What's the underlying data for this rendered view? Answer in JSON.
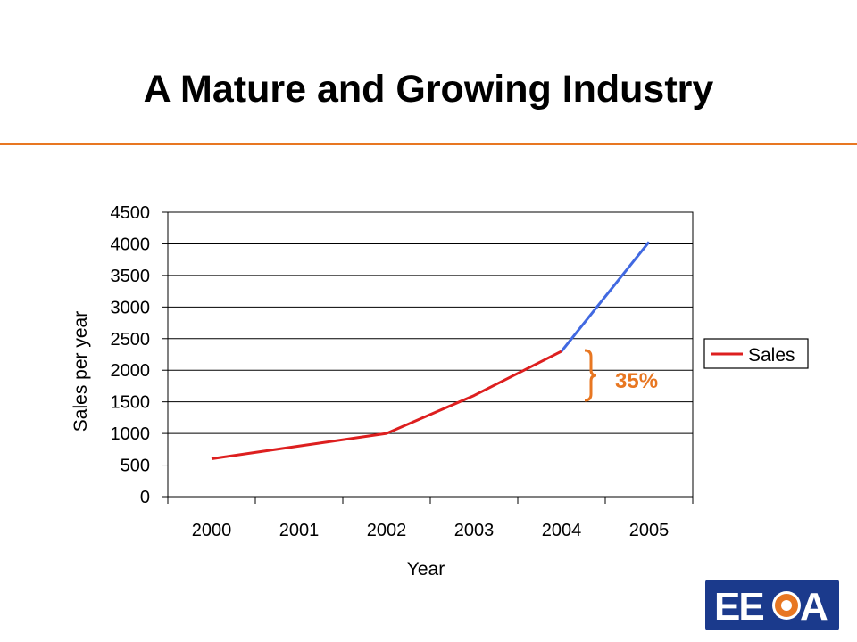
{
  "slide": {
    "title": "A Mature and Growing Industry"
  },
  "logo": {
    "text": "EECA",
    "colors": {
      "background": "#1b3a8c",
      "letters": "#ffffff",
      "sun": "#e87722"
    }
  },
  "colors": {
    "accent_rule": "#e87722",
    "annotation": "#e87722",
    "actual_line": "#dd1f1f",
    "forecast_line": "#4169e1"
  },
  "annotation": {
    "text": "35%",
    "icon": "curly-brace-icon"
  },
  "chart_data": {
    "type": "line",
    "categories": [
      "2000",
      "2001",
      "2002",
      "2003",
      "2004",
      "2005"
    ],
    "series": [
      {
        "name": "Sales",
        "values": [
          600,
          800,
          1000,
          1600,
          2300,
          null
        ],
        "color": "#dd1f1f"
      },
      {
        "values": [
          null,
          null,
          null,
          null,
          2300,
          4030
        ],
        "color": "#4169e1"
      }
    ],
    "xlabel": "Year",
    "ylabel": "Sales per year",
    "ylim": [
      0,
      4500
    ],
    "yticks": [
      0,
      500,
      1000,
      1500,
      2000,
      2500,
      3000,
      3500,
      4000,
      4500
    ],
    "grid": true,
    "legend": {
      "position": "right",
      "entries": [
        "Sales"
      ]
    }
  }
}
